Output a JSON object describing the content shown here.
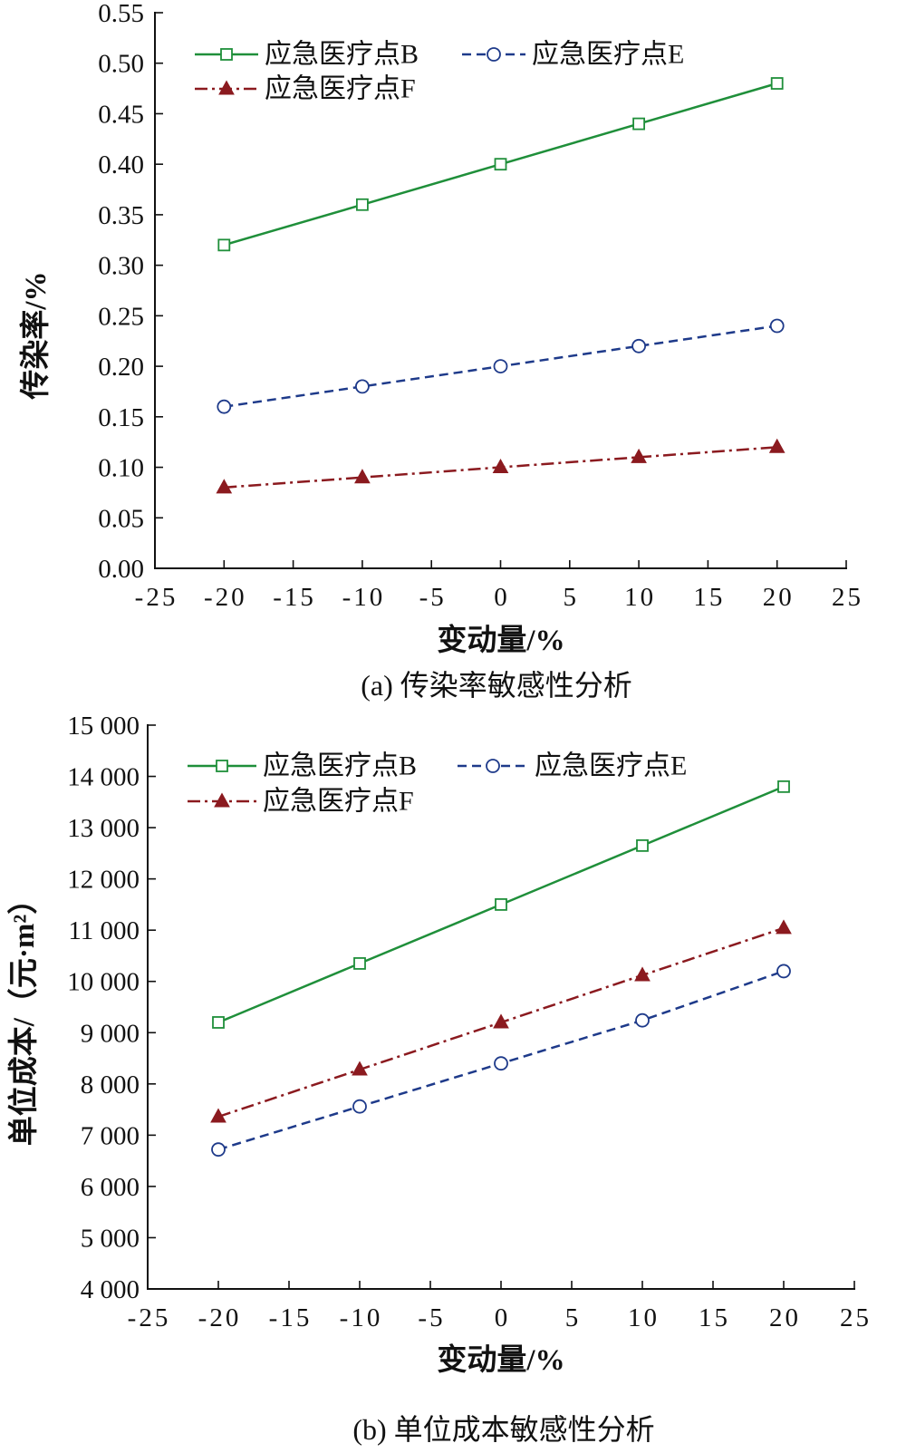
{
  "chart_data": [
    {
      "type": "line",
      "title": "(a) 传染率敏感性分析",
      "xlabel": "变动量/%",
      "ylabel": "传染率/%",
      "x": [
        -20,
        -10,
        0,
        10,
        20
      ],
      "xlim": [
        -25,
        25
      ],
      "ylim": [
        0,
        0.55
      ],
      "xticks": [
        -25,
        -20,
        -15,
        -10,
        -5,
        0,
        5,
        10,
        15,
        20,
        25
      ],
      "xtick_labels": [
        "-25",
        "-20",
        "-15",
        "-10",
        "-5",
        "0",
        "5",
        "10",
        "15",
        "20",
        "25"
      ],
      "yticks": [
        0,
        0.05,
        0.1,
        0.15,
        0.2,
        0.25,
        0.3,
        0.35,
        0.4,
        0.45,
        0.5,
        0.55
      ],
      "ytick_labels": [
        "0.00",
        "0.05",
        "0.10",
        "0.15",
        "0.20",
        "0.25",
        "0.30",
        "0.35",
        "0.40",
        "0.45",
        "0.50",
        "0.55"
      ],
      "grid": false,
      "legend": "top-left",
      "series": [
        {
          "name": "应急医疗点B",
          "values": [
            0.32,
            0.36,
            0.4,
            0.44,
            0.48
          ],
          "color": "#1f8f3a",
          "dash": "solid",
          "marker": "open-square"
        },
        {
          "name": "应急医疗点E",
          "values": [
            0.16,
            0.18,
            0.2,
            0.22,
            0.24
          ],
          "color": "#1e3a8a",
          "dash": "dashed",
          "marker": "open-circle"
        },
        {
          "name": "应急医疗点F",
          "values": [
            0.08,
            0.09,
            0.1,
            0.11,
            0.12
          ],
          "color": "#8b1a1f",
          "dash": "dash-dot",
          "marker": "filled-triangle"
        }
      ]
    },
    {
      "type": "line",
      "title": "(b) 单位成本敏感性分析",
      "xlabel": "变动量/%",
      "ylabel": "单位成本/（元·m²）",
      "x": [
        -20,
        -10,
        0,
        10,
        20
      ],
      "xlim": [
        -25,
        25
      ],
      "ylim": [
        4000,
        15000
      ],
      "xticks": [
        -25,
        -20,
        -15,
        -10,
        -5,
        0,
        5,
        10,
        15,
        20,
        25
      ],
      "xtick_labels": [
        "-25",
        "-20",
        "-15",
        "-10",
        "-5",
        "0",
        "5",
        "10",
        "15",
        "20",
        "25"
      ],
      "yticks": [
        4000,
        5000,
        6000,
        7000,
        8000,
        9000,
        10000,
        11000,
        12000,
        13000,
        14000,
        15000
      ],
      "ytick_labels": [
        "4 000",
        "5 000",
        "6 000",
        "7 000",
        "8 000",
        "9 000",
        "10 000",
        "11 000",
        "12 000",
        "13 000",
        "14 000",
        "15 000"
      ],
      "grid": false,
      "legend": "top-left",
      "series": [
        {
          "name": "应急医疗点B",
          "values": [
            9200,
            10350,
            11500,
            12650,
            13800
          ],
          "color": "#1f8f3a",
          "dash": "solid",
          "marker": "open-square"
        },
        {
          "name": "应急医疗点E",
          "values": [
            6720,
            7560,
            8400,
            9240,
            10200
          ],
          "color": "#1e3a8a",
          "dash": "dashed",
          "marker": "open-circle"
        },
        {
          "name": "应急医疗点F",
          "values": [
            7360,
            8280,
            9200,
            10120,
            11040
          ],
          "color": "#8b1a1f",
          "dash": "dash-dot",
          "marker": "filled-triangle"
        }
      ]
    }
  ]
}
